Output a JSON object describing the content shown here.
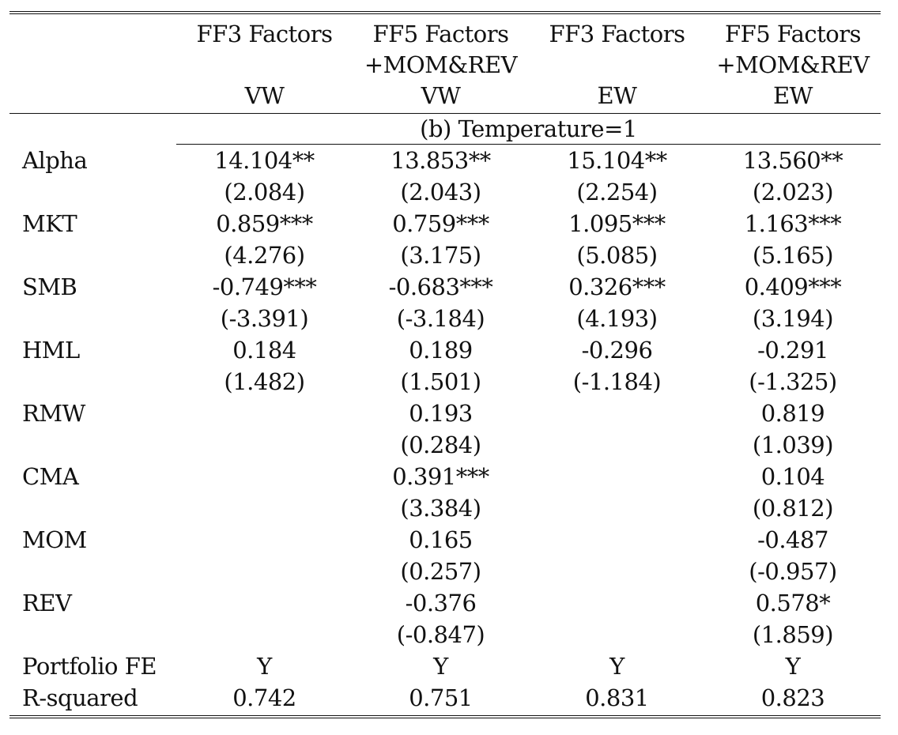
{
  "table": {
    "header": {
      "row1": [
        "",
        "FF3 Factors",
        "FF5 Factors",
        "FF3 Factors",
        "FF5 Factors"
      ],
      "row2": [
        "",
        "",
        "+MOM&REV",
        "",
        "+MOM&REV"
      ],
      "row3": [
        "",
        "VW",
        "VW",
        "EW",
        "EW"
      ]
    },
    "panel_title": "(b) Temperature=1",
    "rows": [
      {
        "label": "Alpha",
        "values": [
          "14.104**",
          "13.853**",
          "15.104**",
          "13.560**"
        ]
      },
      {
        "label": "",
        "values": [
          "(2.084)",
          "(2.043)",
          "(2.254)",
          "(2.023)"
        ]
      },
      {
        "label": "MKT",
        "values": [
          "0.859***",
          "0.759***",
          "1.095***",
          "1.163***"
        ]
      },
      {
        "label": "",
        "values": [
          "(4.276)",
          "(3.175)",
          "(5.085)",
          "(5.165)"
        ]
      },
      {
        "label": "SMB",
        "values": [
          "-0.749***",
          "-0.683***",
          "0.326***",
          "0.409***"
        ]
      },
      {
        "label": "",
        "values": [
          "(-3.391)",
          "(-3.184)",
          "(4.193)",
          "(3.194)"
        ]
      },
      {
        "label": "HML",
        "values": [
          "0.184",
          "0.189",
          "-0.296",
          "-0.291"
        ]
      },
      {
        "label": "",
        "values": [
          "(1.482)",
          "(1.501)",
          "(-1.184)",
          "(-1.325)"
        ]
      },
      {
        "label": "RMW",
        "values": [
          "",
          "0.193",
          "",
          "0.819"
        ]
      },
      {
        "label": "",
        "values": [
          "",
          "(0.284)",
          "",
          "(1.039)"
        ]
      },
      {
        "label": "CMA",
        "values": [
          "",
          "0.391***",
          "",
          "0.104"
        ]
      },
      {
        "label": "",
        "values": [
          "",
          "(3.384)",
          "",
          "(0.812)"
        ]
      },
      {
        "label": "MOM",
        "values": [
          "",
          "0.165",
          "",
          "-0.487"
        ]
      },
      {
        "label": "",
        "values": [
          "",
          "(0.257)",
          "",
          "(-0.957)"
        ]
      },
      {
        "label": "REV",
        "values": [
          "",
          "-0.376",
          "",
          "0.578*"
        ]
      },
      {
        "label": "",
        "values": [
          "",
          "(-0.847)",
          "",
          "(1.859)"
        ]
      },
      {
        "label": "Portfolio FE",
        "values": [
          "Y",
          "Y",
          "Y",
          "Y"
        ]
      },
      {
        "label": "R-squared",
        "values": [
          "0.742",
          "0.751",
          "0.831",
          "0.823"
        ]
      }
    ]
  }
}
